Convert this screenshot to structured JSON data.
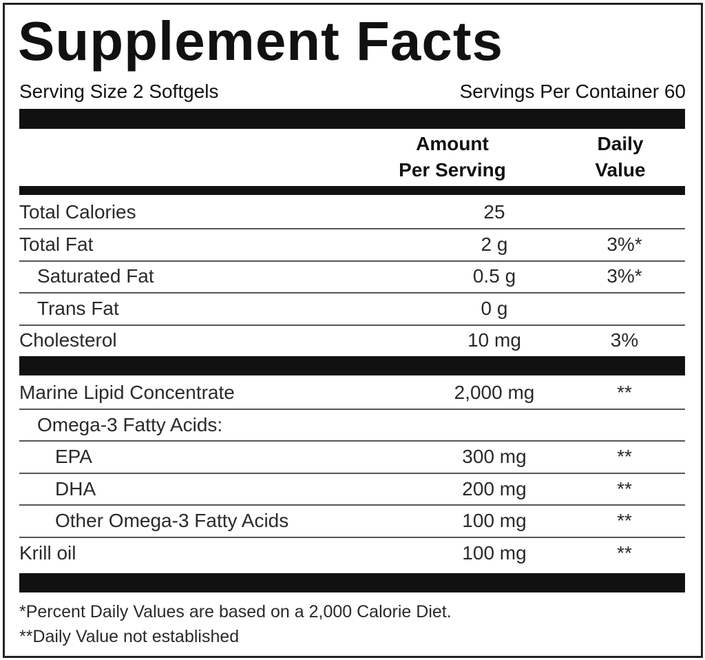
{
  "title": "Supplement Facts",
  "serving_size": "Serving Size 2 Softgels",
  "servings_per_container": "Servings Per Container 60",
  "header": {
    "amount": [
      "Amount",
      "Per Serving"
    ],
    "daily_value": [
      "Daily",
      "Value"
    ]
  },
  "rows": [
    {
      "name": "Total Calories",
      "amount": "25"
    },
    {
      "name": "Total Fat",
      "amount": "2 g",
      "daily_value": "3%*"
    },
    {
      "name": "Saturated Fat",
      "amount": "0.5 g",
      "daily_value": "3%*"
    },
    {
      "name": "Trans Fat",
      "amount": "0 g"
    },
    {
      "name": "Cholesterol",
      "amount": "10 mg",
      "daily_value": "3%"
    },
    {
      "name": "Marine Lipid Concentrate",
      "amount": "2,000 mg",
      "daily_value": "**"
    },
    {
      "name": "Omega-3 Fatty Acids:"
    },
    {
      "name": "EPA",
      "amount": "300 mg",
      "daily_value": "**"
    },
    {
      "name": "DHA",
      "amount": "200 mg",
      "daily_value": "**"
    },
    {
      "name": "Other Omega-3 Fatty Acids",
      "amount": "100 mg",
      "daily_value": "**"
    },
    {
      "name": "Krill oil",
      "amount": "100 mg",
      "daily_value": "**"
    }
  ],
  "footnotes": [
    "*Percent Daily Values are based on a 2,000 Calorie Diet.",
    "**Daily Value not established"
  ]
}
